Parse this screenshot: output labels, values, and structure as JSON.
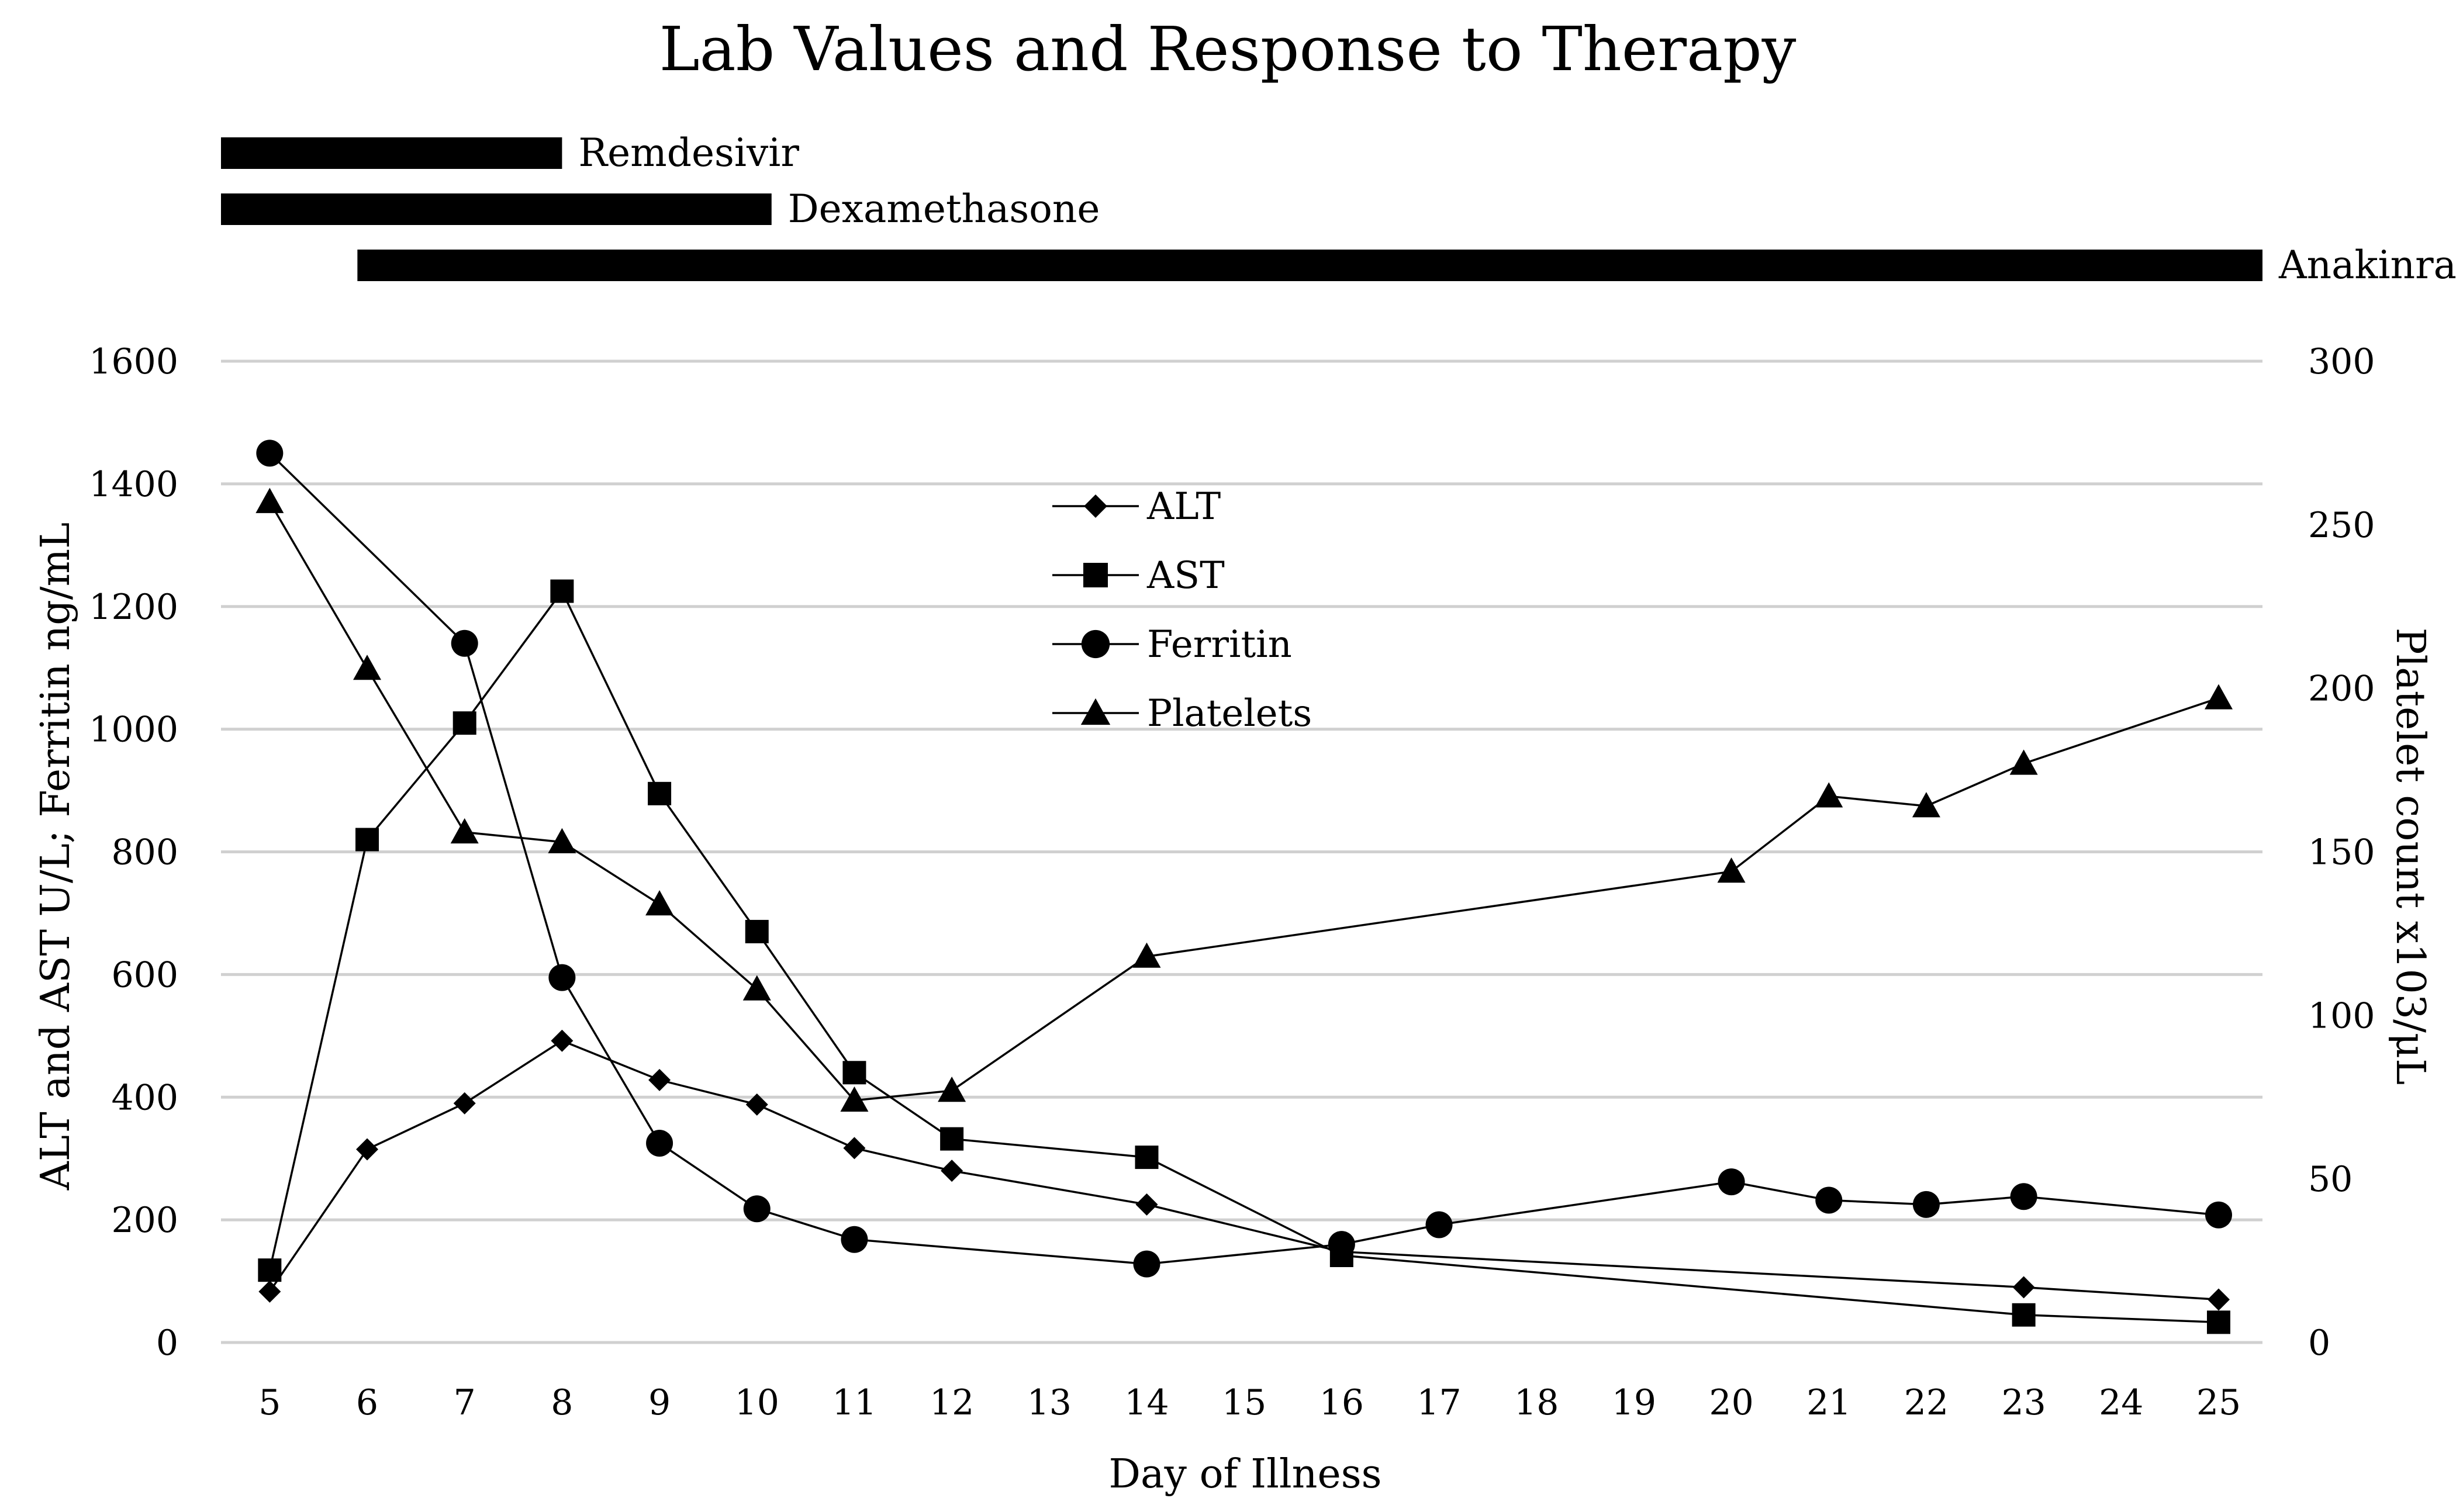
{
  "chart_data": {
    "type": "line",
    "title": "Lab Values and Response to Therapy",
    "xlabel": "Day of Illness",
    "ylabel": "ALT and AST U/L; Ferritin ng/mL",
    "y2label": "Platelet count x103/μL",
    "x_categories": [
      5,
      6,
      7,
      8,
      9,
      10,
      11,
      12,
      13,
      14,
      15,
      16,
      17,
      18,
      19,
      20,
      21,
      22,
      23,
      24,
      25
    ],
    "ylim": [
      0,
      1600
    ],
    "yticks": [
      0,
      200,
      400,
      600,
      800,
      1000,
      1200,
      1400,
      1600
    ],
    "y2lim": [
      0,
      300
    ],
    "y2ticks": [
      0,
      50,
      100,
      150,
      200,
      250,
      300
    ],
    "grid": true,
    "legend_position": "center-top",
    "therapies": [
      {
        "name": "Remdesivir",
        "start": 4.5,
        "end": 8
      },
      {
        "name": "Dexamethasone",
        "start": 4.5,
        "end": 10.15
      },
      {
        "name": "Anakinra",
        "start": 5.9,
        "end": 25.45
      }
    ],
    "series": [
      {
        "name": "ALT",
        "marker": "diamond",
        "axis": "left",
        "x": [
          5,
          6,
          7,
          8,
          9,
          10,
          11,
          12,
          14,
          16,
          23,
          25
        ],
        "y": [
          83,
          315,
          390,
          492,
          428,
          388,
          317,
          280,
          225,
          148,
          90,
          70
        ]
      },
      {
        "name": "AST",
        "marker": "square",
        "axis": "left",
        "x": [
          5,
          6,
          7,
          8,
          9,
          10,
          11,
          12,
          14,
          16,
          23,
          25
        ],
        "y": [
          118,
          820,
          1010,
          1225,
          895,
          670,
          440,
          332,
          302,
          142,
          45,
          33
        ]
      },
      {
        "name": "Ferritin",
        "marker": "circle",
        "axis": "left",
        "x": [
          5,
          7,
          8,
          9,
          10,
          11,
          14,
          16,
          17,
          20,
          21,
          22,
          23,
          25
        ],
        "y": [
          1450,
          1140,
          595,
          325,
          218,
          168,
          128,
          160,
          192,
          262,
          232,
          225,
          238,
          208
        ]
      },
      {
        "name": "Platelets",
        "marker": "triangle",
        "axis": "right",
        "x": [
          5,
          6,
          7,
          8,
          9,
          10,
          11,
          12,
          14,
          20,
          21,
          22,
          23,
          25
        ],
        "y": [
          257,
          206,
          156,
          153,
          134,
          108,
          74,
          77,
          118,
          144,
          167,
          164,
          177,
          197
        ]
      }
    ]
  }
}
